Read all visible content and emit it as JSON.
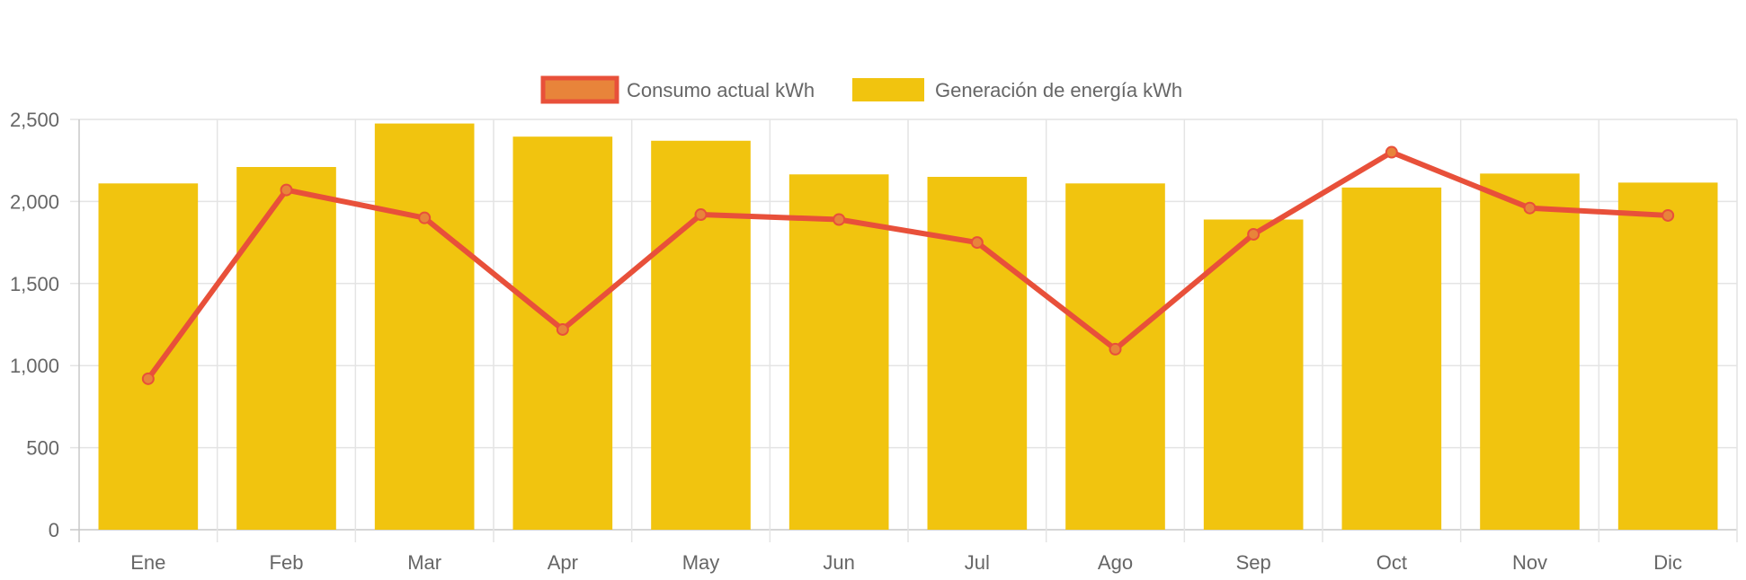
{
  "chart_data": {
    "type": "bar",
    "categories": [
      "Ene",
      "Feb",
      "Mar",
      "Apr",
      "May",
      "Jun",
      "Jul",
      "Ago",
      "Sep",
      "Oct",
      "Nov",
      "Dic"
    ],
    "series": [
      {
        "name": "Consumo actual kWh",
        "kind": "line",
        "values": [
          920,
          2070,
          1900,
          1220,
          1920,
          1890,
          1750,
          1100,
          1800,
          2300,
          1960,
          1915
        ],
        "color": "#e8503a",
        "marker_color": "#e8843a"
      },
      {
        "name": "Generación de energía kWh",
        "kind": "bar",
        "values": [
          2110,
          2210,
          2475,
          2395,
          2370,
          2165,
          2150,
          2110,
          1890,
          2085,
          2170,
          2115
        ],
        "color": "#f1c40f"
      }
    ],
    "y_ticks": [
      "0",
      "500",
      "1,000",
      "1,500",
      "2,000",
      "2,500"
    ],
    "ylim": [
      0,
      2500
    ],
    "grid": true,
    "legend_position": "top-center"
  }
}
